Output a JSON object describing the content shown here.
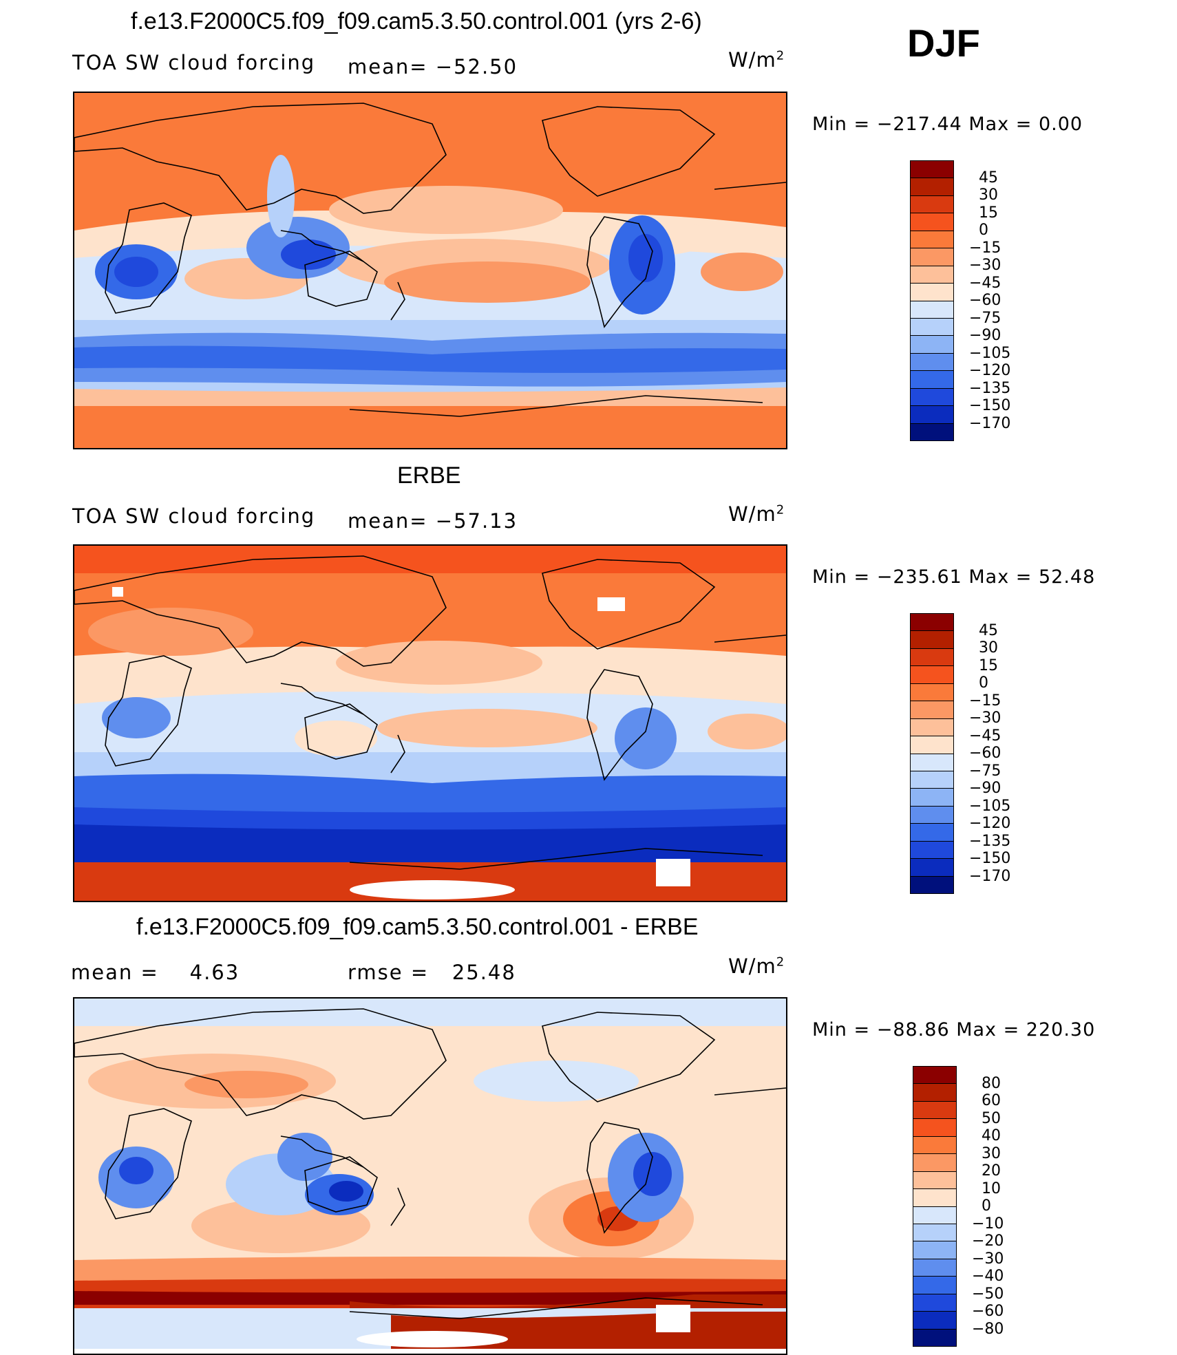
{
  "season": "DJF",
  "units": "W/m",
  "units_sup": "2",
  "panels": [
    {
      "title": "f.e13.F2000C5.f09_f09.cam5.3.50.control.001 (yrs 2-6)",
      "field_label": "TOA SW cloud forcing",
      "stat_label": "mean=",
      "stat_value": "−52.50",
      "minmax": "Min  =  −217.44  Max  =     0.00",
      "levels": [
        "45",
        "30",
        "15",
        "0",
        "−15",
        "−30",
        "−45",
        "−60",
        "−75",
        "−90",
        "−105",
        "−120",
        "−135",
        "−150",
        "−170"
      ],
      "colors": [
        "#8b0000",
        "#b32000",
        "#d93a10",
        "#f5531e",
        "#fa7a3a",
        "#fb9864",
        "#fdc09a",
        "#fee3cc",
        "#d8e7fb",
        "#b6d1fa",
        "#8db4f5",
        "#5f8eee",
        "#3469e8",
        "#1f49dc",
        "#0b2cbe",
        "#00107c"
      ]
    },
    {
      "title": "ERBE",
      "field_label": "TOA SW cloud forcing",
      "stat_label": "mean=",
      "stat_value": "−57.13",
      "minmax": "Min  =  −235.61  Max  =   52.48",
      "levels": [
        "45",
        "30",
        "15",
        "0",
        "−15",
        "−30",
        "−45",
        "−60",
        "−75",
        "−90",
        "−105",
        "−120",
        "−135",
        "−150",
        "−170"
      ],
      "colors": [
        "#8b0000",
        "#b32000",
        "#d93a10",
        "#f5531e",
        "#fa7a3a",
        "#fb9864",
        "#fdc09a",
        "#fee3cc",
        "#d8e7fb",
        "#b6d1fa",
        "#8db4f5",
        "#5f8eee",
        "#3469e8",
        "#1f49dc",
        "#0b2cbe",
        "#00107c"
      ]
    },
    {
      "title": "f.e13.F2000C5.f09_f09.cam5.3.50.control.001 - ERBE",
      "mean_label": "mean  =",
      "mean_value": "4.63",
      "rmse_label": "rmse  =",
      "rmse_value": "25.48",
      "minmax": "Min  =  −88.86  Max  =  220.30",
      "levels": [
        "80",
        "60",
        "50",
        "40",
        "30",
        "20",
        "10",
        "0",
        "−10",
        "−20",
        "−30",
        "−40",
        "−50",
        "−60",
        "−80"
      ],
      "colors": [
        "#8b0000",
        "#b32000",
        "#d93a10",
        "#f5531e",
        "#fa7a3a",
        "#fb9864",
        "#fdc09a",
        "#fee3cc",
        "#d8e7fb",
        "#b6d1fa",
        "#8db4f5",
        "#5f8eee",
        "#3469e8",
        "#1f49dc",
        "#0b2cbe",
        "#00107c"
      ]
    }
  ],
  "chart_data": [
    {
      "type": "heatmap",
      "title": "f.e13.F2000C5.f09_f09.cam5.3.50.control.001 (yrs 2-6)",
      "variable": "TOA SW cloud forcing",
      "units": "W/m2",
      "mean": -52.5,
      "min": -217.44,
      "max": 0.0,
      "contour_levels": [
        45,
        30,
        15,
        0,
        -15,
        -30,
        -45,
        -60,
        -75,
        -90,
        -105,
        -120,
        -135,
        -150,
        -170
      ]
    },
    {
      "type": "heatmap",
      "title": "ERBE",
      "variable": "TOA SW cloud forcing",
      "units": "W/m2",
      "mean": -57.13,
      "min": -235.61,
      "max": 52.48,
      "contour_levels": [
        45,
        30,
        15,
        0,
        -15,
        -30,
        -45,
        -60,
        -75,
        -90,
        -105,
        -120,
        -135,
        -150,
        -170
      ]
    },
    {
      "type": "heatmap",
      "title": "f.e13.F2000C5.f09_f09.cam5.3.50.control.001 - ERBE",
      "units": "W/m2",
      "mean": 4.63,
      "rmse": 25.48,
      "min": -88.86,
      "max": 220.3,
      "contour_levels": [
        80,
        60,
        50,
        40,
        30,
        20,
        10,
        0,
        -10,
        -20,
        -30,
        -40,
        -50,
        -60,
        -80
      ]
    }
  ]
}
